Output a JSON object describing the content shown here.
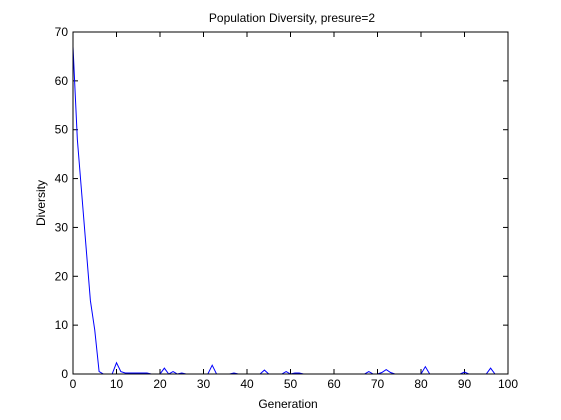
{
  "chart_data": {
    "type": "line",
    "title": "Population Diversity, presure=2",
    "xlabel": "Generation",
    "ylabel": "Diversity",
    "xlim": [
      0,
      100
    ],
    "ylim": [
      0,
      70
    ],
    "xticks": [
      0,
      10,
      20,
      30,
      40,
      50,
      60,
      70,
      80,
      90,
      100
    ],
    "yticks": [
      0,
      10,
      20,
      30,
      40,
      50,
      60,
      70
    ],
    "grid": false,
    "box": true,
    "series": [
      {
        "color": "#0000ff",
        "x": [
          0,
          1,
          2,
          3,
          4,
          5,
          6,
          7,
          8,
          9,
          10,
          11,
          12,
          13,
          14,
          15,
          16,
          17,
          18,
          19,
          20,
          21,
          22,
          23,
          24,
          25,
          26,
          27,
          28,
          29,
          30,
          31,
          32,
          33,
          34,
          35,
          36,
          37,
          38,
          39,
          40,
          41,
          42,
          43,
          44,
          45,
          46,
          47,
          48,
          49,
          50,
          51,
          52,
          53,
          54,
          55,
          56,
          57,
          58,
          59,
          60,
          61,
          62,
          63,
          64,
          65,
          66,
          67,
          68,
          69,
          70,
          71,
          72,
          73,
          74,
          75,
          76,
          77,
          78,
          79,
          80,
          81,
          82,
          83,
          84,
          85,
          86,
          87,
          88,
          89,
          90,
          91,
          92,
          93,
          94,
          95,
          96,
          97
        ],
        "y": [
          67,
          48,
          37,
          26,
          15,
          9,
          0.5,
          0,
          0,
          0,
          2.3,
          0.5,
          0.2,
          0.2,
          0.2,
          0.2,
          0.2,
          0.2,
          0,
          0,
          0,
          1.2,
          0,
          0.5,
          0,
          0.2,
          0,
          0,
          0,
          0,
          0,
          0,
          1.8,
          0,
          0,
          0,
          0,
          0.2,
          0,
          0,
          0,
          0,
          0,
          0,
          0.8,
          0,
          0,
          0,
          0,
          0.5,
          0,
          0.2,
          0.2,
          0,
          0,
          0,
          0,
          0,
          0,
          0,
          0,
          0,
          0,
          0,
          0,
          0,
          0,
          0,
          0.5,
          0,
          0,
          0.3,
          0.9,
          0.3,
          0,
          0,
          0,
          0,
          0,
          0,
          0,
          1.5,
          0,
          0,
          0,
          0,
          0,
          0,
          0,
          0,
          0.4,
          0,
          0,
          0,
          0,
          0,
          1.2,
          0
        ]
      }
    ]
  }
}
